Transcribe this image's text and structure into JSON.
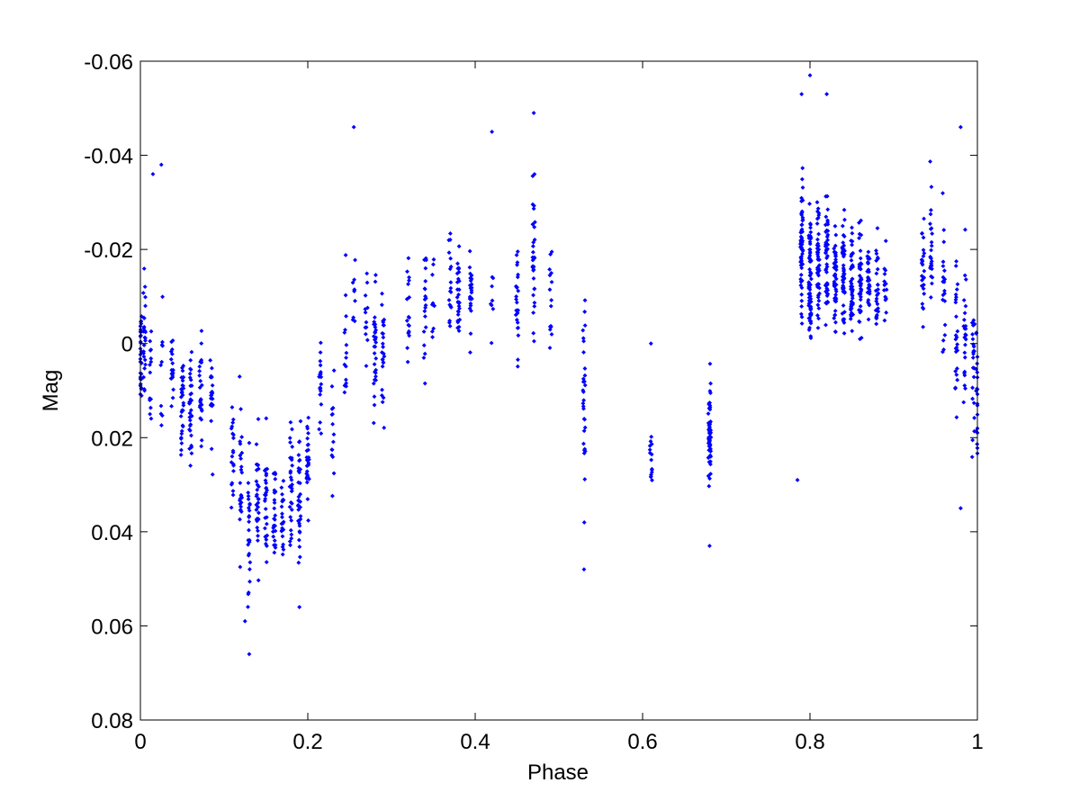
{
  "chart_data": {
    "type": "scatter",
    "xlabel": "Phase",
    "ylabel": "Mag",
    "xlim": [
      0,
      1
    ],
    "ylim": [
      -0.06,
      0.08
    ],
    "y_reversed": true,
    "grid": false,
    "marker": "dot",
    "series_color": "#0000ff",
    "x_ticks": [
      0,
      0.2,
      0.4,
      0.6,
      0.8,
      1
    ],
    "x_tick_labels": [
      "0",
      "0.2",
      "0.4",
      "0.6",
      "0.8",
      "1"
    ],
    "y_ticks": [
      -0.06,
      -0.04,
      -0.02,
      0,
      0.02,
      0.04,
      0.06,
      0.08
    ],
    "y_tick_labels": [
      "-0.06",
      "-0.04",
      "-0.02",
      "0",
      "0.02",
      "0.04",
      "0.06",
      "0.08"
    ],
    "series": [
      {
        "clusters": [
          {
            "x": 0.0,
            "y_mean": 0.004,
            "y_spread": 0.01,
            "count": 30
          },
          {
            "x": 0.005,
            "y_mean": 0.0,
            "y_spread": 0.012,
            "count": 25
          },
          {
            "x": 0.012,
            "y_mean": 0.006,
            "y_spread": 0.01,
            "count": 14
          },
          {
            "x": 0.025,
            "y_mean": 0.005,
            "y_spread": 0.012,
            "count": 10
          },
          {
            "x": 0.038,
            "y_mean": 0.006,
            "y_spread": 0.008,
            "count": 18
          },
          {
            "x": 0.05,
            "y_mean": 0.012,
            "y_spread": 0.01,
            "count": 30
          },
          {
            "x": 0.06,
            "y_mean": 0.014,
            "y_spread": 0.01,
            "count": 35
          },
          {
            "x": 0.072,
            "y_mean": 0.01,
            "y_spread": 0.01,
            "count": 25
          },
          {
            "x": 0.085,
            "y_mean": 0.012,
            "y_spread": 0.01,
            "count": 20
          },
          {
            "x": 0.11,
            "y_mean": 0.025,
            "y_spread": 0.012,
            "count": 20
          },
          {
            "x": 0.12,
            "y_mean": 0.03,
            "y_spread": 0.012,
            "count": 25
          },
          {
            "x": 0.13,
            "y_mean": 0.038,
            "y_spread": 0.012,
            "count": 25
          },
          {
            "x": 0.14,
            "y_mean": 0.032,
            "y_spread": 0.012,
            "count": 30
          },
          {
            "x": 0.15,
            "y_mean": 0.035,
            "y_spread": 0.012,
            "count": 28
          },
          {
            "x": 0.16,
            "y_mean": 0.034,
            "y_spread": 0.011,
            "count": 25
          },
          {
            "x": 0.17,
            "y_mean": 0.036,
            "y_spread": 0.01,
            "count": 22
          },
          {
            "x": 0.18,
            "y_mean": 0.03,
            "y_spread": 0.01,
            "count": 30
          },
          {
            "x": 0.19,
            "y_mean": 0.032,
            "y_spread": 0.011,
            "count": 35
          },
          {
            "x": 0.2,
            "y_mean": 0.025,
            "y_spread": 0.012,
            "count": 32
          },
          {
            "x": 0.215,
            "y_mean": 0.01,
            "y_spread": 0.012,
            "count": 20
          },
          {
            "x": 0.23,
            "y_mean": 0.015,
            "y_spread": 0.015,
            "count": 15
          },
          {
            "x": 0.245,
            "y_mean": 0.0,
            "y_spread": 0.012,
            "count": 15
          },
          {
            "x": 0.255,
            "y_mean": -0.01,
            "y_spread": 0.015,
            "count": 10
          },
          {
            "x": 0.27,
            "y_mean": -0.005,
            "y_spread": 0.012,
            "count": 12
          },
          {
            "x": 0.28,
            "y_mean": 0.0,
            "y_spread": 0.01,
            "count": 30
          },
          {
            "x": 0.29,
            "y_mean": 0.002,
            "y_spread": 0.012,
            "count": 25
          },
          {
            "x": 0.32,
            "y_mean": -0.005,
            "y_spread": 0.014,
            "count": 18
          },
          {
            "x": 0.34,
            "y_mean": -0.008,
            "y_spread": 0.012,
            "count": 20
          },
          {
            "x": 0.35,
            "y_mean": -0.012,
            "y_spread": 0.012,
            "count": 10
          },
          {
            "x": 0.37,
            "y_mean": -0.012,
            "y_spread": 0.01,
            "count": 18
          },
          {
            "x": 0.38,
            "y_mean": -0.01,
            "y_spread": 0.008,
            "count": 30
          },
          {
            "x": 0.395,
            "y_mean": -0.012,
            "y_spread": 0.008,
            "count": 25
          },
          {
            "x": 0.42,
            "y_mean": -0.01,
            "y_spread": 0.012,
            "count": 8
          },
          {
            "x": 0.45,
            "y_mean": -0.008,
            "y_spread": 0.01,
            "count": 25
          },
          {
            "x": 0.47,
            "y_mean": -0.02,
            "y_spread": 0.016,
            "count": 30
          },
          {
            "x": 0.49,
            "y_mean": -0.008,
            "y_spread": 0.01,
            "count": 15
          },
          {
            "x": 0.53,
            "y_mean": 0.01,
            "y_spread": 0.02,
            "count": 30
          },
          {
            "x": 0.61,
            "y_mean": 0.025,
            "y_spread": 0.008,
            "count": 15
          },
          {
            "x": 0.68,
            "y_mean": 0.02,
            "y_spread": 0.01,
            "count": 60
          },
          {
            "x": 0.79,
            "y_mean": -0.02,
            "y_spread": 0.012,
            "count": 60
          },
          {
            "x": 0.8,
            "y_mean": -0.015,
            "y_spread": 0.014,
            "count": 70
          },
          {
            "x": 0.81,
            "y_mean": -0.018,
            "y_spread": 0.012,
            "count": 55
          },
          {
            "x": 0.82,
            "y_mean": -0.018,
            "y_spread": 0.012,
            "count": 50
          },
          {
            "x": 0.83,
            "y_mean": -0.015,
            "y_spread": 0.01,
            "count": 45
          },
          {
            "x": 0.84,
            "y_mean": -0.014,
            "y_spread": 0.01,
            "count": 50
          },
          {
            "x": 0.85,
            "y_mean": -0.013,
            "y_spread": 0.01,
            "count": 45
          },
          {
            "x": 0.86,
            "y_mean": -0.013,
            "y_spread": 0.01,
            "count": 40
          },
          {
            "x": 0.87,
            "y_mean": -0.015,
            "y_spread": 0.008,
            "count": 30
          },
          {
            "x": 0.88,
            "y_mean": -0.013,
            "y_spread": 0.008,
            "count": 25
          },
          {
            "x": 0.89,
            "y_mean": -0.012,
            "y_spread": 0.008,
            "count": 15
          },
          {
            "x": 0.935,
            "y_mean": -0.015,
            "y_spread": 0.01,
            "count": 25
          },
          {
            "x": 0.945,
            "y_mean": -0.02,
            "y_spread": 0.012,
            "count": 25
          },
          {
            "x": 0.96,
            "y_mean": -0.01,
            "y_spread": 0.012,
            "count": 20
          },
          {
            "x": 0.975,
            "y_mean": 0.0,
            "y_spread": 0.015,
            "count": 25
          },
          {
            "x": 0.985,
            "y_mean": 0.0,
            "y_spread": 0.015,
            "count": 25
          },
          {
            "x": 0.995,
            "y_mean": 0.005,
            "y_spread": 0.015,
            "count": 25
          },
          {
            "x": 1.0,
            "y_mean": 0.008,
            "y_spread": 0.015,
            "count": 20
          }
        ],
        "extremes": [
          {
            "x": 0.13,
            "y": 0.066
          },
          {
            "x": 0.125,
            "y": 0.059
          },
          {
            "x": 0.19,
            "y": 0.056
          },
          {
            "x": 0.53,
            "y": 0.048
          },
          {
            "x": 0.68,
            "y": 0.043
          },
          {
            "x": 0.255,
            "y": -0.046
          },
          {
            "x": 0.42,
            "y": -0.045
          },
          {
            "x": 0.47,
            "y": -0.049
          },
          {
            "x": 0.8,
            "y": -0.057
          },
          {
            "x": 0.79,
            "y": -0.053
          },
          {
            "x": 0.82,
            "y": -0.053
          },
          {
            "x": 0.785,
            "y": 0.029
          },
          {
            "x": 0.98,
            "y": 0.035
          },
          {
            "x": 0.98,
            "y": -0.046
          },
          {
            "x": 0.025,
            "y": -0.038
          },
          {
            "x": 0.015,
            "y": -0.036
          },
          {
            "x": 0.61,
            "y": 0.0
          }
        ]
      }
    ]
  }
}
